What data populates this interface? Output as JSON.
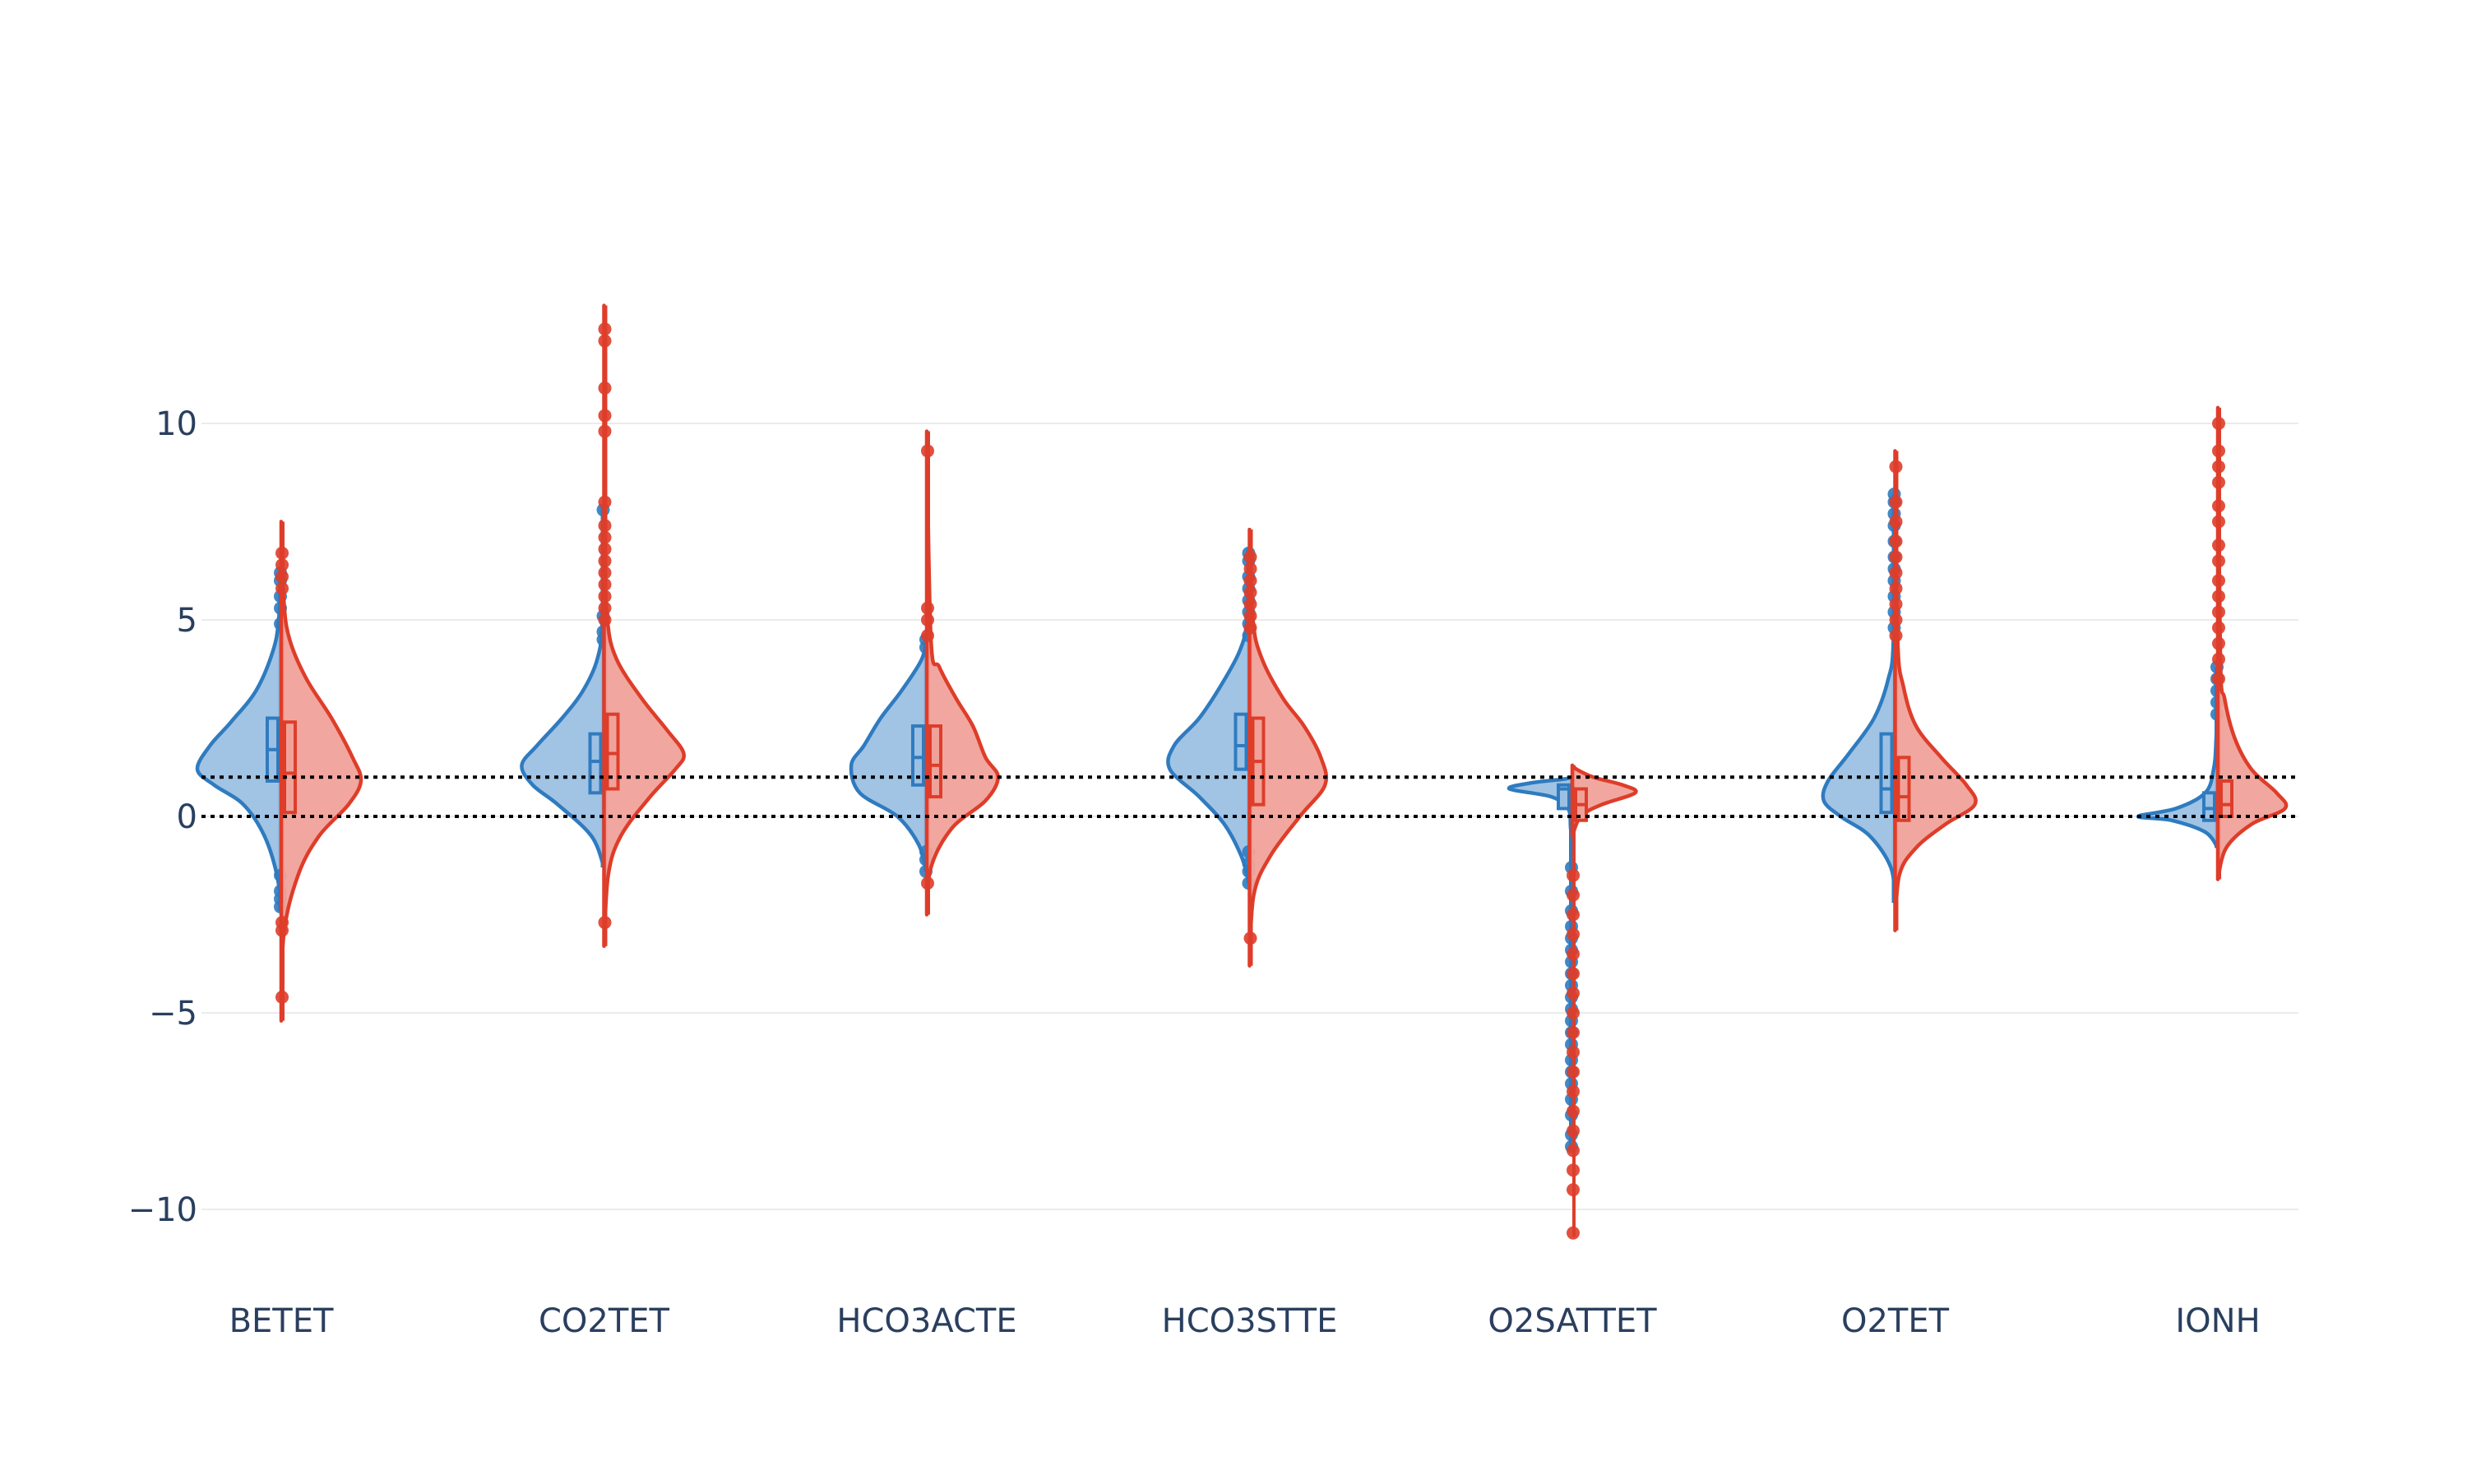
{
  "chart_data": {
    "type": "violin",
    "split": true,
    "categories": [
      "BETET",
      "CO2TET",
      "HCO3ACTE",
      "HCO3STTE",
      "O2SATTET",
      "O2TET",
      "IONH"
    ],
    "ylim": [
      -11.5,
      14.5
    ],
    "yticks": [
      -10,
      -5,
      0,
      5,
      10
    ],
    "ytick_labels": [
      "−10",
      "−5",
      "0",
      "5",
      "10"
    ],
    "grid": true,
    "reference_lines": [
      0,
      1
    ],
    "series": [
      {
        "side": "negative",
        "color": "#2f7bbf",
        "fill": "#9cc0e3",
        "violins": [
          {
            "range": [
              -2.4,
              6.3
            ],
            "q1": 0.9,
            "median": 1.7,
            "q3": 2.5,
            "profile": [
              [
                -2.4,
                0
              ],
              [
                -1.5,
                0.05
              ],
              [
                -0.5,
                0.2
              ],
              [
                0.3,
                0.45
              ],
              [
                0.8,
                0.8
              ],
              [
                1.2,
                1.0
              ],
              [
                1.8,
                0.85
              ],
              [
                2.4,
                0.6
              ],
              [
                3.2,
                0.3
              ],
              [
                4.2,
                0.1
              ],
              [
                5.0,
                0.03
              ],
              [
                6.3,
                0
              ]
            ],
            "points": [
              -2.3,
              -2.1,
              -1.9,
              -1.5,
              4.9,
              5.3,
              5.6,
              6.0,
              6.2
            ]
          },
          {
            "range": [
              -1.3,
              7.9
            ],
            "q1": 0.6,
            "median": 1.4,
            "q3": 2.1,
            "profile": [
              [
                -1.3,
                0
              ],
              [
                -0.5,
                0.15
              ],
              [
                0.3,
                0.55
              ],
              [
                0.8,
                0.85
              ],
              [
                1.3,
                0.98
              ],
              [
                1.8,
                0.8
              ],
              [
                2.5,
                0.5
              ],
              [
                3.2,
                0.25
              ],
              [
                4.0,
                0.08
              ],
              [
                5.0,
                0.02
              ],
              [
                7.9,
                0
              ]
            ],
            "points": [
              4.5,
              4.7,
              5.1,
              7.8
            ]
          },
          {
            "range": [
              -1.4,
              4.6
            ],
            "q1": 0.8,
            "median": 1.5,
            "q3": 2.3,
            "profile": [
              [
                -1.4,
                0
              ],
              [
                -0.7,
                0.1
              ],
              [
                0.0,
                0.35
              ],
              [
                0.6,
                0.8
              ],
              [
                1.3,
                0.9
              ],
              [
                1.8,
                0.75
              ],
              [
                2.5,
                0.55
              ],
              [
                3.2,
                0.3
              ],
              [
                4.0,
                0.06
              ],
              [
                4.6,
                0
              ]
            ],
            "points": [
              -1.4,
              -1.1,
              -0.9,
              4.3,
              4.5
            ]
          },
          {
            "range": [
              -1.7,
              6.8
            ],
            "q1": 1.2,
            "median": 1.8,
            "q3": 2.6,
            "profile": [
              [
                -1.7,
                0
              ],
              [
                -1.0,
                0.1
              ],
              [
                -0.2,
                0.3
              ],
              [
                0.5,
                0.6
              ],
              [
                1.2,
                0.95
              ],
              [
                1.8,
                0.9
              ],
              [
                2.5,
                0.6
              ],
              [
                3.3,
                0.35
              ],
              [
                4.2,
                0.12
              ],
              [
                5.0,
                0.03
              ],
              [
                6.8,
                0
              ]
            ],
            "points": [
              -1.7,
              -1.4,
              -1.2,
              -0.9,
              4.6,
              4.9,
              5.2,
              5.5,
              5.8,
              6.1,
              6.5,
              6.7
            ]
          },
          {
            "range": [
              -8.4,
              1.0
            ],
            "q1": 0.2,
            "median": 0.7,
            "q3": 0.8,
            "profile": [
              [
                -1.0,
                0
              ],
              [
                -0.3,
                0.02
              ],
              [
                0.2,
                0.05
              ],
              [
                0.5,
                0.25
              ],
              [
                0.7,
                0.75
              ],
              [
                0.85,
                0.5
              ],
              [
                0.95,
                0.1
              ],
              [
                1.0,
                0
              ]
            ],
            "points": [
              -1.3,
              -1.9,
              -2.4,
              -2.8,
              -3.1,
              -3.4,
              -3.7,
              -4.0,
              -4.3,
              -4.6,
              -4.9,
              -5.2,
              -5.5,
              -5.8,
              -6.2,
              -6.5,
              -6.8,
              -7.2,
              -7.6,
              -8.1,
              -8.4
            ]
          },
          {
            "range": [
              -2.2,
              8.2
            ],
            "q1": 0.1,
            "median": 0.7,
            "q3": 2.1,
            "profile": [
              [
                -2.2,
                0
              ],
              [
                -1.3,
                0.05
              ],
              [
                -0.5,
                0.3
              ],
              [
                0.0,
                0.65
              ],
              [
                0.4,
                0.85
              ],
              [
                0.9,
                0.8
              ],
              [
                1.6,
                0.55
              ],
              [
                2.5,
                0.25
              ],
              [
                3.5,
                0.08
              ],
              [
                4.5,
                0.02
              ],
              [
                8.2,
                0
              ]
            ],
            "points": [
              4.8,
              5.2,
              5.6,
              6.0,
              6.3,
              6.6,
              7.0,
              7.4,
              7.7,
              8.0,
              8.2
            ]
          },
          {
            "range": [
              -0.8,
              3.8
            ],
            "q1": -0.1,
            "median": 0.2,
            "q3": 0.6,
            "profile": [
              [
                -0.8,
                0
              ],
              [
                -0.4,
                0.15
              ],
              [
                -0.1,
                0.55
              ],
              [
                0.0,
                0.95
              ],
              [
                0.2,
                0.5
              ],
              [
                0.6,
                0.15
              ],
              [
                1.2,
                0.05
              ],
              [
                2.0,
                0.02
              ],
              [
                3.8,
                0
              ]
            ],
            "points": [
              2.6,
              2.9,
              3.2,
              3.5,
              3.8
            ]
          }
        ]
      },
      {
        "side": "positive",
        "color": "#de3d2a",
        "fill": "#f0a29a",
        "violins": [
          {
            "range": [
              -5.2,
              7.5
            ],
            "q1": 0.1,
            "median": 1.1,
            "q3": 2.4,
            "profile": [
              [
                -5.2,
                0
              ],
              [
                -3.0,
                0.03
              ],
              [
                -1.5,
                0.2
              ],
              [
                -0.5,
                0.45
              ],
              [
                0.3,
                0.8
              ],
              [
                0.9,
                0.95
              ],
              [
                1.5,
                0.85
              ],
              [
                2.5,
                0.6
              ],
              [
                3.5,
                0.3
              ],
              [
                4.5,
                0.1
              ],
              [
                5.5,
                0.03
              ],
              [
                7.5,
                0
              ]
            ],
            "points": [
              -4.6,
              -2.9,
              -2.7,
              5.8,
              6.1,
              6.4,
              6.7
            ]
          },
          {
            "range": [
              -3.3,
              13.0
            ],
            "q1": 0.7,
            "median": 1.6,
            "q3": 2.6,
            "profile": [
              [
                -3.3,
                0
              ],
              [
                -1.5,
                0.05
              ],
              [
                -0.5,
                0.2
              ],
              [
                0.5,
                0.55
              ],
              [
                1.2,
                0.85
              ],
              [
                1.6,
                0.95
              ],
              [
                2.2,
                0.75
              ],
              [
                3.0,
                0.45
              ],
              [
                4.0,
                0.15
              ],
              [
                5.0,
                0.04
              ],
              [
                7.0,
                0.01
              ],
              [
                13.0,
                0
              ]
            ],
            "points": [
              -2.7,
              5.0,
              5.3,
              5.6,
              5.9,
              6.2,
              6.5,
              6.8,
              7.1,
              7.4,
              8.0,
              9.8,
              10.2,
              10.9,
              12.1,
              12.4
            ]
          },
          {
            "range": [
              -2.5,
              9.8
            ],
            "q1": 0.5,
            "median": 1.3,
            "q3": 2.3,
            "profile": [
              [
                -2.5,
                0
              ],
              [
                -1.3,
                0.05
              ],
              [
                -0.3,
                0.3
              ],
              [
                0.4,
                0.7
              ],
              [
                1.0,
                0.85
              ],
              [
                1.5,
                0.7
              ],
              [
                2.3,
                0.55
              ],
              [
                3.0,
                0.35
              ],
              [
                3.8,
                0.15
              ],
              [
                4.5,
                0.05
              ],
              [
                9.8,
                0
              ]
            ],
            "points": [
              -1.7,
              4.6,
              5.0,
              5.3,
              9.3
            ]
          },
          {
            "range": [
              -3.8,
              7.3
            ],
            "q1": 0.3,
            "median": 1.4,
            "q3": 2.5,
            "profile": [
              [
                -3.8,
                0
              ],
              [
                -2.0,
                0.05
              ],
              [
                -1.0,
                0.25
              ],
              [
                0.0,
                0.6
              ],
              [
                0.8,
                0.9
              ],
              [
                1.5,
                0.85
              ],
              [
                2.3,
                0.65
              ],
              [
                3.0,
                0.4
              ],
              [
                4.0,
                0.15
              ],
              [
                5.0,
                0.04
              ],
              [
                7.3,
                0
              ]
            ],
            "points": [
              -3.1,
              4.8,
              5.1,
              5.4,
              5.7,
              6.0,
              6.3,
              6.6
            ]
          },
          {
            "range": [
              -10.7,
              1.3
            ],
            "q1": -0.1,
            "median": 0.3,
            "q3": 0.7,
            "profile": [
              [
                -0.5,
                0
              ],
              [
                0.0,
                0.1
              ],
              [
                0.3,
                0.35
              ],
              [
                0.6,
                0.75
              ],
              [
                0.8,
                0.6
              ],
              [
                1.0,
                0.25
              ],
              [
                1.2,
                0.05
              ],
              [
                1.3,
                0
              ]
            ],
            "points": [
              -1.5,
              -2.0,
              -2.5,
              -3.0,
              -3.5,
              -4.0,
              -4.5,
              -5.0,
              -5.5,
              -6.0,
              -6.5,
              -7.0,
              -7.5,
              -8.0,
              -8.5,
              -9.0,
              -9.5,
              -10.6
            ]
          },
          {
            "range": [
              -2.9,
              9.3
            ],
            "q1": -0.1,
            "median": 0.5,
            "q3": 1.5,
            "profile": [
              [
                -2.9,
                0
              ],
              [
                -1.5,
                0.05
              ],
              [
                -0.8,
                0.25
              ],
              [
                -0.2,
                0.6
              ],
              [
                0.3,
                0.95
              ],
              [
                0.8,
                0.85
              ],
              [
                1.5,
                0.55
              ],
              [
                2.3,
                0.25
              ],
              [
                3.3,
                0.1
              ],
              [
                4.5,
                0.03
              ],
              [
                9.3,
                0
              ]
            ],
            "points": [
              4.6,
              5.0,
              5.4,
              5.8,
              6.2,
              6.6,
              7.0,
              7.5,
              8.0,
              8.9
            ]
          },
          {
            "range": [
              -1.6,
              10.4
            ],
            "q1": 0.0,
            "median": 0.3,
            "q3": 0.9,
            "profile": [
              [
                -1.6,
                0
              ],
              [
                -0.8,
                0.1
              ],
              [
                -0.2,
                0.4
              ],
              [
                0.2,
                0.8
              ],
              [
                0.6,
                0.7
              ],
              [
                1.2,
                0.4
              ],
              [
                2.0,
                0.2
              ],
              [
                3.0,
                0.08
              ],
              [
                4.0,
                0.03
              ],
              [
                10.4,
                0
              ]
            ],
            "points": [
              3.5,
              4.0,
              4.4,
              4.8,
              5.2,
              5.6,
              6.0,
              6.5,
              6.9,
              7.5,
              7.9,
              8.5,
              8.9,
              9.3,
              10.0
            ]
          }
        ]
      }
    ]
  }
}
